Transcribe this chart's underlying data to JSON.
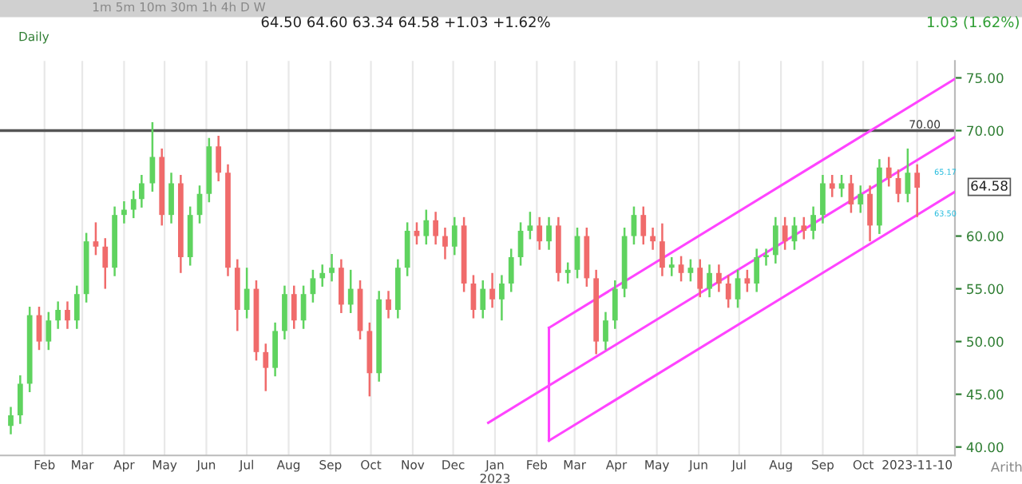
{
  "chart_data": {
    "type": "candlestick",
    "x": [
      "2022-01-07",
      "2022-01-14",
      "2022-01-21",
      "2022-01-28",
      "2022-02-04",
      "2022-02-11",
      "2022-02-18",
      "2022-02-25",
      "2022-03-04",
      "2022-03-11",
      "2022-03-18",
      "2022-03-25",
      "2022-04-01",
      "2022-04-08",
      "2022-04-14",
      "2022-04-22",
      "2022-04-29",
      "2022-05-06",
      "2022-05-13",
      "2022-05-20",
      "2022-05-27",
      "2022-06-03",
      "2022-06-10",
      "2022-06-17",
      "2022-06-24",
      "2022-07-01",
      "2022-07-08",
      "2022-07-15",
      "2022-07-22",
      "2022-07-29",
      "2022-08-05",
      "2022-08-12",
      "2022-08-19",
      "2022-08-26",
      "2022-09-02",
      "2022-09-09",
      "2022-09-16",
      "2022-09-23",
      "2022-09-30",
      "2022-10-07",
      "2022-10-14",
      "2022-10-21",
      "2022-10-28",
      "2022-11-04",
      "2022-11-11",
      "2022-11-18",
      "2022-11-25",
      "2022-12-02",
      "2022-12-09",
      "2022-12-16",
      "2022-12-23",
      "2022-12-30",
      "2023-01-06",
      "2023-01-13",
      "2023-01-20",
      "2023-01-27",
      "2023-02-03",
      "2023-02-10",
      "2023-02-17",
      "2023-02-24",
      "2023-03-03",
      "2023-03-10",
      "2023-03-17",
      "2023-03-24",
      "2023-03-31",
      "2023-04-07",
      "2023-04-14",
      "2023-04-21",
      "2023-04-28",
      "2023-05-05",
      "2023-05-12",
      "2023-05-19",
      "2023-05-26",
      "2023-06-02",
      "2023-06-09",
      "2023-06-16",
      "2023-06-23",
      "2023-06-30",
      "2023-07-07",
      "2023-07-14",
      "2023-07-21",
      "2023-07-28",
      "2023-08-04",
      "2023-08-11",
      "2023-08-18",
      "2023-08-25",
      "2023-09-01",
      "2023-09-08",
      "2023-09-15",
      "2023-09-22",
      "2023-09-29",
      "2023-10-06",
      "2023-10-13",
      "2023-10-20",
      "2023-10-27",
      "2023-11-03",
      "2023-11-10"
    ],
    "ohlc": [
      [
        42,
        43.8,
        41.2,
        43
      ],
      [
        43,
        46.8,
        42.2,
        46
      ],
      [
        46,
        53.3,
        45.2,
        52.5
      ],
      [
        52.5,
        53.3,
        49.2,
        50
      ],
      [
        50,
        52.8,
        49.2,
        52
      ],
      [
        52,
        53.8,
        51.2,
        53
      ],
      [
        53,
        53.8,
        51.2,
        52
      ],
      [
        52,
        55.3,
        51.2,
        54.5
      ],
      [
        54.5,
        60.3,
        53.7,
        59.5
      ],
      [
        59.5,
        61.3,
        58.2,
        59
      ],
      [
        59,
        59.8,
        55,
        57
      ],
      [
        57,
        62.8,
        56.2,
        62
      ],
      [
        62,
        63.3,
        61.2,
        62.5
      ],
      [
        62.5,
        64.3,
        61.7,
        63.5
      ],
      [
        63.5,
        65.8,
        62.7,
        65
      ],
      [
        65,
        70.8,
        64.2,
        67.5
      ],
      [
        67.5,
        68.3,
        61,
        62
      ],
      [
        62,
        66,
        61.2,
        65
      ],
      [
        65,
        65.8,
        56.5,
        58
      ],
      [
        58,
        62.8,
        57.2,
        62
      ],
      [
        62,
        64.8,
        61.2,
        64
      ],
      [
        64,
        69.3,
        63.2,
        68.5
      ],
      [
        68.5,
        69.5,
        65.2,
        66
      ],
      [
        66,
        66.8,
        56.2,
        57
      ],
      [
        57,
        57.8,
        51,
        53
      ],
      [
        53,
        57,
        52.2,
        55
      ],
      [
        55,
        55.8,
        48.2,
        49
      ],
      [
        49,
        49.8,
        45.3,
        47.5
      ],
      [
        47.5,
        51.8,
        46.7,
        51
      ],
      [
        51,
        55.3,
        50.2,
        54.5
      ],
      [
        54.5,
        55.3,
        51.2,
        52
      ],
      [
        52,
        55.3,
        51.2,
        54.5
      ],
      [
        54.5,
        56.8,
        53.7,
        56
      ],
      [
        56,
        57.3,
        55.2,
        56.5
      ],
      [
        56.5,
        58.3,
        55.7,
        57
      ],
      [
        57,
        57.8,
        52.7,
        53.5
      ],
      [
        53.5,
        56.8,
        52.7,
        55
      ],
      [
        55,
        55.8,
        50.2,
        51
      ],
      [
        51,
        51.8,
        44.8,
        47
      ],
      [
        47,
        54.8,
        46.2,
        54
      ],
      [
        54,
        54.8,
        52.2,
        53
      ],
      [
        53,
        57.8,
        52.2,
        57
      ],
      [
        57,
        61.3,
        56.2,
        60.5
      ],
      [
        60.5,
        61.3,
        59.2,
        60
      ],
      [
        60,
        62.5,
        59.2,
        61.5
      ],
      [
        61.5,
        62.3,
        59.2,
        60
      ],
      [
        60,
        60.8,
        57.8,
        59
      ],
      [
        59,
        61.8,
        58.2,
        61
      ],
      [
        61,
        61.8,
        54.7,
        55.5
      ],
      [
        55.5,
        56.3,
        52.2,
        53
      ],
      [
        53,
        55.8,
        52.2,
        55
      ],
      [
        55,
        56.5,
        53.2,
        54
      ],
      [
        54,
        56.3,
        52,
        55.5
      ],
      [
        55.5,
        58.8,
        54.7,
        58
      ],
      [
        58,
        61.3,
        57.2,
        60.5
      ],
      [
        60.5,
        62.3,
        59.7,
        61
      ],
      [
        61,
        61.8,
        58.7,
        59.5
      ],
      [
        59.5,
        61.8,
        58.7,
        61
      ],
      [
        61,
        61.8,
        55.7,
        56.5
      ],
      [
        56.5,
        57.5,
        55.5,
        56.8
      ],
      [
        56.8,
        60.8,
        56,
        60
      ],
      [
        60,
        60.8,
        55.2,
        56
      ],
      [
        56,
        56.8,
        48.8,
        50
      ],
      [
        50,
        52.8,
        49.2,
        52
      ],
      [
        52,
        55.8,
        51.2,
        55
      ],
      [
        55,
        60.8,
        54.2,
        60
      ],
      [
        60,
        62.8,
        59.2,
        62
      ],
      [
        62,
        62.8,
        59.2,
        60
      ],
      [
        60,
        60.8,
        58.7,
        59.5
      ],
      [
        59.5,
        61.2,
        56.2,
        57
      ],
      [
        57,
        58,
        56.2,
        57.3
      ],
      [
        57.3,
        58.1,
        55.7,
        56.5
      ],
      [
        56.5,
        57.8,
        55.7,
        57
      ],
      [
        57,
        57.8,
        54.2,
        55
      ],
      [
        55,
        57.3,
        54.2,
        56.5
      ],
      [
        56.5,
        57.3,
        54.7,
        55.5
      ],
      [
        55.5,
        56.3,
        53.2,
        54
      ],
      [
        54,
        56.8,
        53.2,
        56
      ],
      [
        56,
        56.8,
        54.7,
        55.5
      ],
      [
        55.5,
        58.8,
        54.7,
        58
      ],
      [
        58,
        58.8,
        57.2,
        58.2
      ],
      [
        58.2,
        61.8,
        57.4,
        61
      ],
      [
        61,
        61.8,
        58.7,
        59.5
      ],
      [
        59.5,
        61.8,
        58.7,
        61
      ],
      [
        61,
        61.8,
        59.7,
        60.5
      ],
      [
        60.5,
        62.8,
        59.7,
        62
      ],
      [
        62,
        65.8,
        61.2,
        65
      ],
      [
        65,
        65.8,
        63.7,
        64.5
      ],
      [
        64.5,
        65.8,
        63.7,
        65
      ],
      [
        65,
        65.8,
        62.2,
        63
      ],
      [
        63,
        64.8,
        62.2,
        64
      ],
      [
        64,
        64.8,
        59.5,
        61
      ],
      [
        61,
        67.3,
        60.2,
        66.5
      ],
      [
        66.5,
        67.5,
        64.7,
        65.5
      ],
      [
        65.5,
        66.3,
        63.2,
        64
      ],
      [
        64,
        68.3,
        63.2,
        66
      ],
      [
        66,
        66.8,
        61.8,
        64.58
      ]
    ],
    "colors": [
      "#5fd35f",
      "#5fd35f",
      "#5fd35f",
      "#f06b6b",
      "#5fd35f",
      "#5fd35f",
      "#f06b6b",
      "#5fd35f",
      "#5fd35f",
      "#f06b6b",
      "#f06b6b",
      "#5fd35f",
      "#5fd35f",
      "#5fd35f",
      "#5fd35f",
      "#5fd35f",
      "#f06b6b",
      "#5fd35f",
      "#f06b6b",
      "#5fd35f",
      "#5fd35f",
      "#5fd35f",
      "#f06b6b",
      "#f06b6b",
      "#f06b6b",
      "#5fd35f",
      "#f06b6b",
      "#f06b6b",
      "#5fd35f",
      "#5fd35f",
      "#f06b6b",
      "#5fd35f",
      "#5fd35f",
      "#5fd35f",
      "#5fd35f",
      "#f06b6b",
      "#5fd35f",
      "#f06b6b",
      "#f06b6b",
      "#5fd35f",
      "#f06b6b",
      "#5fd35f",
      "#5fd35f",
      "#f06b6b",
      "#5fd35f",
      "#f06b6b",
      "#f06b6b",
      "#5fd35f",
      "#f06b6b",
      "#f06b6b",
      "#5fd35f",
      "#f06b6b",
      "#5fd35f",
      "#5fd35f",
      "#5fd35f",
      "#5fd35f",
      "#f06b6b",
      "#5fd35f",
      "#f06b6b",
      "#5fd35f",
      "#5fd35f",
      "#f06b6b",
      "#f06b6b",
      "#5fd35f",
      "#5fd35f",
      "#5fd35f",
      "#5fd35f",
      "#f06b6b",
      "#f06b6b",
      "#f06b6b",
      "#5fd35f",
      "#f06b6b",
      "#5fd35f",
      "#f06b6b",
      "#5fd35f",
      "#f06b6b",
      "#f06b6b",
      "#5fd35f",
      "#f06b6b",
      "#5fd35f",
      "#5fd35f",
      "#5fd35f",
      "#f06b6b",
      "#5fd35f",
      "#f06b6b",
      "#5fd35f",
      "#5fd35f",
      "#f06b6b",
      "#5fd35f",
      "#f06b6b",
      "#5fd35f",
      "#f06b6b",
      "#5fd35f",
      "#f06b6b",
      "#f06b6b",
      "#5fd35f",
      "#f06b6b"
    ],
    "series": [
      {
        "type": "line",
        "color": "#ff44ff",
        "x": [
          "2023-02-10",
          "2023-12-08"
        ],
        "values": [
          51.3,
          74.9
        ]
      },
      {
        "type": "line",
        "color": "#ff44ff",
        "x": [
          "2022-12-27",
          "2023-12-08"
        ],
        "values": [
          42.3,
          69.4
        ]
      },
      {
        "type": "line",
        "color": "#ff44ff",
        "x": [
          "2023-02-10",
          "2023-12-08"
        ],
        "values": [
          40.6,
          64.2
        ]
      },
      {
        "type": "line",
        "color": "#ff44ff",
        "x": [
          "2023-02-10",
          "2023-02-10"
        ],
        "values": [
          40.6,
          51.3
        ]
      }
    ],
    "xlim": [
      "2021-12-30",
      "2023-12-08"
    ],
    "xticks": [
      {
        "value": "2022-02-01",
        "label": "Feb"
      },
      {
        "value": "2022-03-01",
        "label": "Mar"
      },
      {
        "value": "2022-04-01",
        "label": "Apr"
      },
      {
        "value": "2022-05-01",
        "label": "May"
      },
      {
        "value": "2022-06-01",
        "label": "Jun"
      },
      {
        "value": "2022-07-01",
        "label": "Jul"
      },
      {
        "value": "2022-08-01",
        "label": "Aug"
      },
      {
        "value": "2022-09-01",
        "label": "Sep"
      },
      {
        "value": "2022-10-01",
        "label": "Oct"
      },
      {
        "value": "2022-11-01",
        "label": "Nov"
      },
      {
        "value": "2022-12-01",
        "label": "Dec"
      },
      {
        "value": "2023-01-01",
        "label": "Jan\n2023"
      },
      {
        "value": "2023-02-01",
        "label": "Feb"
      },
      {
        "value": "2023-03-01",
        "label": "Mar"
      },
      {
        "value": "2023-04-01",
        "label": "Apr"
      },
      {
        "value": "2023-05-01",
        "label": "May"
      },
      {
        "value": "2023-06-01",
        "label": "Jun"
      },
      {
        "value": "2023-07-01",
        "label": "Jul"
      },
      {
        "value": "2023-08-01",
        "label": "Aug"
      },
      {
        "value": "2023-09-01",
        "label": "Sep"
      },
      {
        "value": "2023-10-01",
        "label": "Oct"
      },
      {
        "value": "2023-11-10",
        "label": "2023-11-10"
      }
    ],
    "ylim": [
      39.2,
      76.6
    ],
    "yticks": [
      {
        "value": 40,
        "label": "40.00"
      },
      {
        "value": 45,
        "label": "45.00"
      },
      {
        "value": 50,
        "label": "50.00"
      },
      {
        "value": 55,
        "label": "55.00"
      },
      {
        "value": 60,
        "label": "60.00"
      },
      {
        "value": 70,
        "label": "70.00"
      },
      {
        "value": 75,
        "label": "75.00"
      }
    ],
    "grid": "x",
    "ref_lines": [
      {
        "axis": "y",
        "value": 70,
        "label": "70.00",
        "color": "#555555"
      }
    ],
    "annotations": [
      "1m 5m 10m 30m 1h 4h D W",
      "64.50 64.60 63.34 64.58 +1.03 +1.62%",
      "1.03 (1.62%)",
      "Daily",
      "64.58",
      "65.17",
      "63.50",
      "Arith"
    ]
  }
}
